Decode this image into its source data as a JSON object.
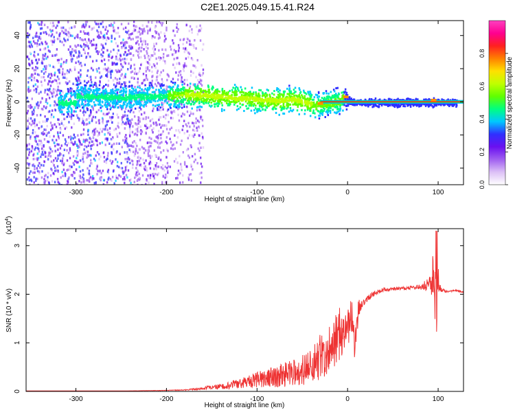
{
  "title": "C2E1.2025.049.15.41.R24",
  "chart_data": [
    {
      "type": "heatmap",
      "title": "C2E1.2025.049.15.41.R24",
      "xlabel": "Height of straight line (km)",
      "ylabel": "Frequency (Hz)",
      "xlim": [
        -355,
        128
      ],
      "ylim": [
        -50,
        49
      ],
      "xticks": [
        -300,
        -200,
        -100,
        0,
        100
      ],
      "xtick_labels": [
        "-300",
        "-200",
        "-100",
        "0",
        "100"
      ],
      "yticks": [
        -40,
        -20,
        0,
        20,
        40
      ],
      "ytick_labels": [
        "-40",
        "-20",
        "0",
        "20",
        "40"
      ],
      "colorbar": {
        "label": "Normalized spectral amplitude",
        "range": [
          0,
          1
        ],
        "ticks": [
          0.0,
          0.2,
          0.4,
          0.6,
          0.8
        ],
        "tick_labels": [
          "0.0",
          "0.2",
          "0.4",
          "0.6",
          "0.8"
        ],
        "colors": [
          "#ffffff",
          "#dcc0f6",
          "#a060f0",
          "#6a10f0",
          "#3030ff",
          "#00c8ff",
          "#00ff80",
          "#60ff00",
          "#c0ff00",
          "#ffe000",
          "#ff8000",
          "#ff2020",
          "#ff0090",
          "#ff40c0"
        ]
      },
      "ridge": {
        "description": "Dominant spectral line (frequency vs height)",
        "x": [
          -300,
          -250,
          -200,
          -175,
          -150,
          -125,
          -100,
          -80,
          -60,
          -45,
          -38,
          -30,
          -20,
          -10,
          -3,
          0,
          5,
          20,
          50,
          90,
          100,
          128
        ],
        "freq": [
          4,
          3,
          4,
          5,
          4,
          3,
          2,
          1,
          2,
          0,
          -2,
          -1,
          0,
          1,
          3,
          1,
          0,
          0,
          0,
          0,
          0,
          0
        ]
      }
    },
    {
      "type": "line",
      "xlabel": "Height of straight line (km)",
      "ylabel": "SNR (10 * v/v)",
      "y_multiplier_label": "(x10",
      "y_multiplier_exp": "4",
      "y_multiplier_close": ")",
      "xlim": [
        -355,
        128
      ],
      "ylim": [
        0,
        3.35
      ],
      "xticks": [
        -300,
        -200,
        -100,
        0,
        100
      ],
      "xtick_labels": [
        "-300",
        "-200",
        "-100",
        "0",
        "100"
      ],
      "yticks": [
        0,
        1,
        2,
        3
      ],
      "ytick_labels": [
        "0",
        "1",
        "2",
        "3"
      ],
      "series": [
        {
          "name": "SNR",
          "color": "#ee3333",
          "x": [
            -355,
            -300,
            -250,
            -200,
            -180,
            -160,
            -140,
            -120,
            -100,
            -80,
            -60,
            -40,
            -30,
            -20,
            -10,
            0,
            5,
            8,
            10,
            12,
            15,
            20,
            30,
            40,
            60,
            80,
            90,
            95,
            98,
            100,
            105,
            110,
            120,
            128
          ],
          "y": [
            0.01,
            0.01,
            0.01,
            0.02,
            0.03,
            0.06,
            0.1,
            0.16,
            0.24,
            0.3,
            0.38,
            0.5,
            0.7,
            0.9,
            1.15,
            1.45,
            1.5,
            0.9,
            1.3,
            1.7,
            1.8,
            1.9,
            2.02,
            2.1,
            2.12,
            2.15,
            2.2,
            2.4,
            1.8,
            2.25,
            2.08,
            2.06,
            2.07,
            2.05
          ],
          "noise": [
            0,
            0,
            0,
            0.005,
            0.01,
            0.03,
            0.06,
            0.1,
            0.16,
            0.22,
            0.28,
            0.35,
            0.5,
            0.5,
            0.55,
            0.5,
            0.4,
            0.3,
            0.3,
            0.2,
            0.12,
            0.08,
            0.05,
            0.04,
            0.03,
            0.05,
            0.15,
            0.55,
            0.7,
            0.3,
            0.04,
            0.02,
            0.02,
            0.02
          ]
        }
      ]
    }
  ]
}
